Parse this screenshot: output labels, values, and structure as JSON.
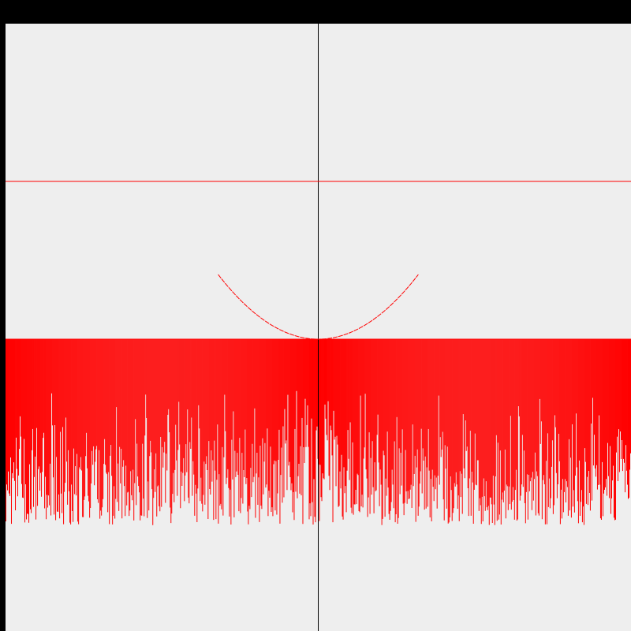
{
  "window": {
    "title": ""
  },
  "colors": {
    "background": "#eeeeee",
    "frame": "#000000",
    "axis": "#000000",
    "curve": "#ff0000"
  },
  "chart_data": {
    "type": "line",
    "title": "",
    "xlabel": "",
    "ylabel": "",
    "grid": false,
    "xlim": [
      -2,
      2
    ],
    "ylim": [
      -1.85,
      2
    ],
    "series": [
      {
        "kind": "parabola",
        "expression": "y = x^2",
        "x_range": [
          -0.64,
          0.64
        ],
        "samples": [
          {
            "x": -0.6,
            "y": 0.36
          },
          {
            "x": -0.4,
            "y": 0.16
          },
          {
            "x": -0.2,
            "y": 0.04
          },
          {
            "x": 0.0,
            "y": 0.0
          },
          {
            "x": 0.2,
            "y": 0.04
          },
          {
            "x": 0.4,
            "y": 0.16
          },
          {
            "x": 0.6,
            "y": 0.36
          }
        ]
      },
      {
        "kind": "horizontal-line",
        "y": 1.0
      },
      {
        "kind": "random-spikes",
        "baseline": 0,
        "spike_count": 792,
        "depth_range": [
          -1.18,
          0
        ]
      }
    ]
  }
}
